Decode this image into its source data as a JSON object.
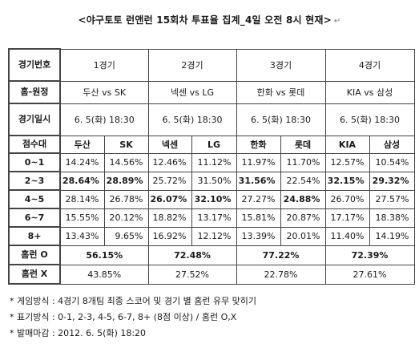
{
  "title": "<야구토토 런앤런 15회차 투표율 집계_4일 오전 8시 현재>",
  "header": {
    "game_no_label": "경기번호",
    "home_away_label": "홈-원정",
    "game_time_label": "경기일시",
    "score_label": "점수대"
  },
  "games": [
    {
      "name": "1경기",
      "matchup": "두산 vs SK",
      "datetime": "6. 5(화) 18:30",
      "home": "두산",
      "away": "SK"
    },
    {
      "name": "2경기",
      "matchup": "넥센 vs LG",
      "datetime": "6. 5(화) 18:30",
      "home": "넥센",
      "away": "LG"
    },
    {
      "name": "3경기",
      "matchup": "한화 vs 롯데",
      "datetime": "6. 5(화) 18:30",
      "home": "한화",
      "away": "롯데"
    },
    {
      "name": "4경기",
      "matchup": "KIA vs 삼성",
      "datetime": "6. 5(화) 18:30",
      "home": "KIA",
      "away": "삼성"
    }
  ],
  "rows": [
    {
      "label": "0~1",
      "values": [
        "14.24%",
        "14.56%",
        "12.46%",
        "11.12%",
        "11.97%",
        "11.70%",
        "12.57%",
        "10.54%"
      ],
      "bold": [
        false,
        false,
        false,
        false,
        false,
        false,
        false,
        false
      ]
    },
    {
      "label": "2~3",
      "values": [
        "28.64%",
        "28.89%",
        "25.72%",
        "31.50%",
        "31.56%",
        "22.54%",
        "32.15%",
        "29.32%"
      ],
      "bold": [
        true,
        true,
        false,
        false,
        true,
        false,
        true,
        true
      ]
    },
    {
      "label": "4~5",
      "values": [
        "28.14%",
        "26.78%",
        "26.07%",
        "32.10%",
        "27.27%",
        "24.88%",
        "26.70%",
        "27.57%"
      ],
      "bold": [
        false,
        false,
        true,
        true,
        false,
        true,
        false,
        false
      ]
    },
    {
      "label": "6~7",
      "values": [
        "15.55%",
        "20.12%",
        "18.82%",
        "13.17%",
        "15.81%",
        "20.87%",
        "17.17%",
        "18.38%"
      ],
      "bold": [
        false,
        false,
        false,
        false,
        false,
        false,
        false,
        false
      ]
    },
    {
      "label": "8+",
      "values": [
        "13.43%",
        "9.65%",
        "16.92%",
        "12.12%",
        "13.39%",
        "20.01%",
        "11.40%",
        "14.19%"
      ],
      "bold": [
        false,
        false,
        false,
        false,
        false,
        false,
        false,
        false
      ]
    }
  ],
  "homerun_o": {
    "label": "홈런 O",
    "values": [
      "56.15%",
      "72.48%",
      "77.22%",
      "72.39%"
    ]
  },
  "homerun_x": {
    "label": "홈런 X",
    "values": [
      "43.85%",
      "27.52%",
      "22.78%",
      "27.61%"
    ]
  },
  "notes": [
    "* 게임방식 : 4경기 8개팀 최종 스코어 및 경기 별 홈런 유무 맞히기",
    "* 표기방식 : 0-1, 2-3, 4-5, 6-7, 8+ (8점 이상) / 홈런 O,X",
    "* 발매마감 : 2012. 6. 5(화) 18:20"
  ]
}
